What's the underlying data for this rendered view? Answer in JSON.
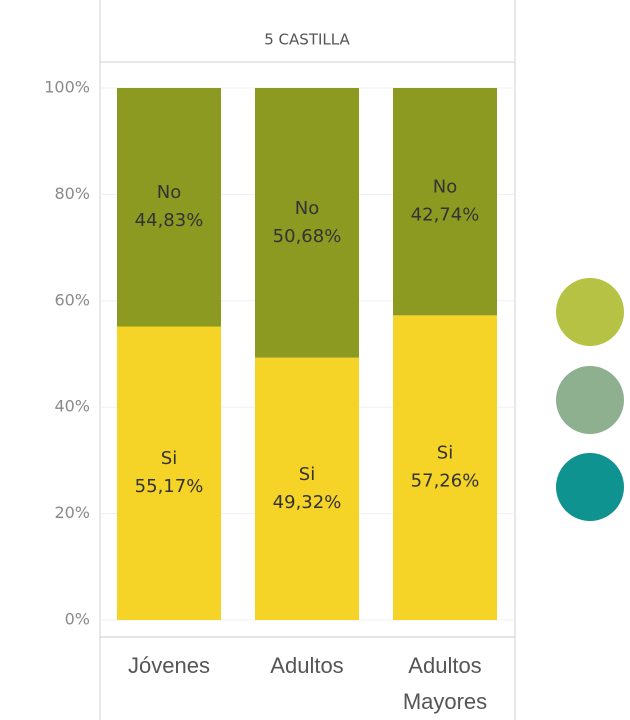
{
  "chart_data": {
    "type": "stacked_bar",
    "title": "5 CASTILLA",
    "categories": [
      "Jóvenes",
      "Adultos",
      "Adultos Mayores"
    ],
    "series": [
      {
        "name": "Si",
        "color": "#f5d327",
        "values": [
          55.17,
          49.32,
          57.26
        ],
        "value_labels": [
          "55,17%",
          "49,32%",
          "57,26%"
        ]
      },
      {
        "name": "No",
        "color": "#8c9a22",
        "values": [
          44.83,
          50.68,
          42.74
        ],
        "value_labels": [
          "44,83%",
          "50,68%",
          "42,74%"
        ]
      }
    ],
    "ylim": [
      0,
      100
    ],
    "yticks": [
      {
        "value": 0,
        "label": "0%"
      },
      {
        "value": 20,
        "label": "20%"
      },
      {
        "value": 40,
        "label": "40%"
      },
      {
        "value": 60,
        "label": "60%"
      },
      {
        "value": 80,
        "label": "80%"
      },
      {
        "value": 100,
        "label": "100%"
      }
    ],
    "grid": true
  }
}
